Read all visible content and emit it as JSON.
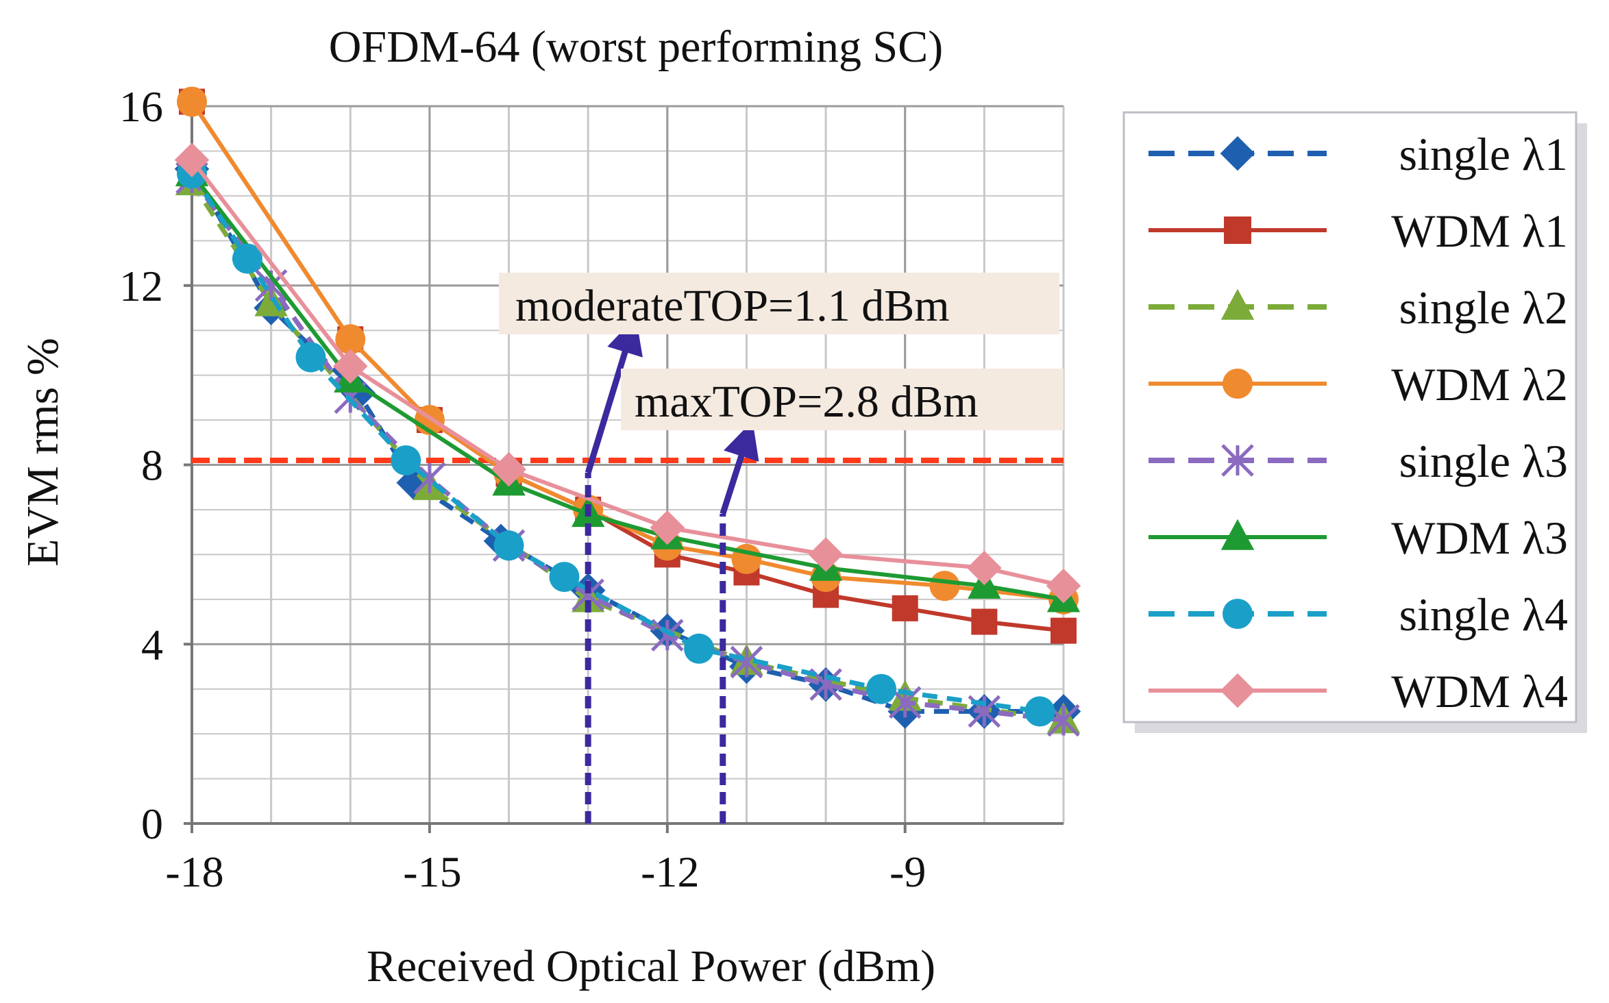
{
  "chart_data": {
    "type": "line",
    "title": "OFDM-64 (worst performing SC)",
    "xlabel": "Received Optical Power (dBm)",
    "ylabel": "EVM rms %",
    "xlim": [
      -18,
      -7
    ],
    "ylim": [
      0,
      16
    ],
    "x_ticks": [
      -18,
      -15,
      -12,
      -9
    ],
    "y_ticks": [
      0,
      4,
      8,
      12,
      16
    ],
    "x_tick_labels": [
      "-18",
      "-15",
      "-12",
      "-9"
    ],
    "y_tick_labels": [
      "0",
      "4",
      "8",
      "12",
      "16"
    ],
    "grid": true,
    "legend_position": "right",
    "threshold": {
      "y": 8.1,
      "color": "#ff3a1a"
    },
    "annotations": [
      {
        "label": "moderateTOP=1.1 dBm",
        "x": -13.0,
        "color": "#3b2a9e"
      },
      {
        "label": "maxTOP=2.8 dBm",
        "x": -11.3,
        "color": "#3b2a9e"
      }
    ],
    "series": [
      {
        "name": "single λ1",
        "color": "#1f5fb0",
        "dash": "dash",
        "marker": "diamond",
        "x": [
          -18,
          -17,
          -15.9,
          -15.2,
          -14.1,
          -13,
          -12,
          -11,
          -10,
          -9,
          -8,
          -7
        ],
        "y": [
          14.6,
          11.5,
          9.6,
          7.6,
          6.3,
          5.2,
          4.3,
          3.5,
          3.1,
          2.5,
          2.5,
          2.5
        ]
      },
      {
        "name": "WDM λ1",
        "color": "#c0392b",
        "dash": "solid",
        "marker": "square",
        "x": [
          -18,
          -16,
          -15,
          -14,
          -13,
          -12,
          -11,
          -10,
          -9,
          -8,
          -7
        ],
        "y": [
          16.1,
          10.8,
          9.0,
          7.8,
          7.0,
          6.0,
          5.6,
          5.1,
          4.8,
          4.5,
          4.3
        ]
      },
      {
        "name": "single λ2",
        "color": "#7cab3a",
        "dash": "dash",
        "marker": "triangle",
        "x": [
          -18,
          -17,
          -15,
          -13,
          -11,
          -9,
          -7
        ],
        "y": [
          14.3,
          11.6,
          7.5,
          5.0,
          3.6,
          2.8,
          2.3
        ]
      },
      {
        "name": "WDM λ2",
        "color": "#f08a2e",
        "dash": "solid",
        "marker": "circle",
        "x": [
          -18,
          -16,
          -15,
          -14,
          -13,
          -12,
          -11,
          -10,
          -8.5,
          -7
        ],
        "y": [
          16.1,
          10.8,
          9.0,
          7.8,
          7.0,
          6.2,
          5.9,
          5.5,
          5.3,
          5.0
        ]
      },
      {
        "name": "single λ3",
        "color": "#8a6bbf",
        "dash": "dash",
        "marker": "x",
        "x": [
          -18,
          -17,
          -16,
          -15,
          -14,
          -13,
          -12,
          -11,
          -10,
          -9,
          -8,
          -7
        ],
        "y": [
          14.4,
          12.0,
          9.5,
          7.7,
          6.2,
          5.1,
          4.2,
          3.6,
          3.1,
          2.7,
          2.5,
          2.3
        ]
      },
      {
        "name": "WDM λ3",
        "color": "#1e9a32",
        "dash": "solid",
        "marker": "triangle",
        "x": [
          -18,
          -16,
          -14,
          -13,
          -12,
          -10,
          -8,
          -7
        ],
        "y": [
          14.5,
          9.9,
          7.6,
          6.9,
          6.4,
          5.7,
          5.3,
          5.0
        ]
      },
      {
        "name": "single λ4",
        "color": "#1aa0c8",
        "dash": "dash",
        "marker": "circle",
        "x": [
          -18,
          -17.3,
          -16.5,
          -15.3,
          -14,
          -13.3,
          -11.6,
          -9.3,
          -7.3
        ],
        "y": [
          14.5,
          12.6,
          10.4,
          8.1,
          6.2,
          5.5,
          3.9,
          3.0,
          2.5
        ]
      },
      {
        "name": "WDM λ4",
        "color": "#e8909a",
        "dash": "solid",
        "marker": "diamond",
        "x": [
          -18,
          -16,
          -14,
          -12,
          -10,
          -8,
          -7
        ],
        "y": [
          14.8,
          10.2,
          7.9,
          6.6,
          6.0,
          5.7,
          5.3
        ]
      }
    ]
  }
}
